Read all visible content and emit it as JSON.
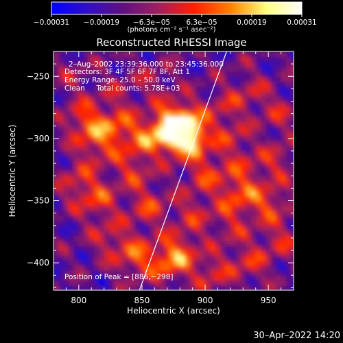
{
  "chart_data": {
    "type": "heatmap",
    "title": "Reconstructed RHESSI Image",
    "xlabel": "Heliocentric X (arcsec)",
    "ylabel": "Heliocentric Y (arcsec)",
    "xlim": [
      780,
      970
    ],
    "ylim": [
      -422,
      -230
    ],
    "x_ticks": [
      800,
      850,
      900,
      950
    ],
    "y_ticks": [
      -250,
      -300,
      -350,
      -400
    ],
    "x_tick_labels": [
      "800",
      "850",
      "900",
      "950"
    ],
    "y_tick_labels": [
      "−250",
      "−300",
      "−350",
      "−400"
    ],
    "colorbar": {
      "range": [
        -0.00031,
        0.00031
      ],
      "tick_labels": [
        "−0.00031",
        "−0.00019",
        "−6.3e−05",
        "6.3e−05",
        "0.00019",
        "0.00031"
      ],
      "colors": [
        "#0000ff",
        "#3010c0",
        "#601080",
        "#a02060",
        "#ff2000",
        "#ff8000",
        "#ffff80",
        "#ffffff"
      ]
    },
    "colorbar_label": "(photons cm⁻² s⁻¹ asec⁻²)",
    "annotations": [
      "2–Aug–2002 23:39:36.000 to 23:45:36.000",
      "Detectors: 3F 4F 5F 6F 7F 8F, Att 1",
      "Energy Range: 25.0 – 50.0 keV",
      "Clean     Total counts: 5.78E+03"
    ],
    "peak_label": "Position of Peak = [886,−298]",
    "peak": [
      886,
      -298
    ],
    "limb_line": [
      [
        848,
        -422
      ],
      [
        917,
        -230
      ]
    ],
    "hotspots": [
      {
        "x": 886,
        "y": -298,
        "intensity": 1.0
      },
      {
        "x": 872,
        "y": -294,
        "intensity": 0.85
      },
      {
        "x": 880,
        "y": -285,
        "intensity": 0.6
      },
      {
        "x": 805,
        "y": -285,
        "intensity": 0.55
      },
      {
        "x": 830,
        "y": -290,
        "intensity": 0.5
      },
      {
        "x": 815,
        "y": -305,
        "intensity": 0.45
      },
      {
        "x": 850,
        "y": -300,
        "intensity": 0.45
      },
      {
        "x": 843,
        "y": -325,
        "intensity": 0.4
      },
      {
        "x": 815,
        "y": -350,
        "intensity": 0.45
      },
      {
        "x": 800,
        "y": -335,
        "intensity": 0.4
      },
      {
        "x": 900,
        "y": -328,
        "intensity": 0.45
      },
      {
        "x": 925,
        "y": -345,
        "intensity": 0.5
      },
      {
        "x": 950,
        "y": -352,
        "intensity": 0.5
      },
      {
        "x": 855,
        "y": -355,
        "intensity": 0.45
      },
      {
        "x": 845,
        "y": -395,
        "intensity": 0.55
      },
      {
        "x": 870,
        "y": -400,
        "intensity": 0.5
      },
      {
        "x": 880,
        "y": -390,
        "intensity": 0.45
      },
      {
        "x": 825,
        "y": -380,
        "intensity": 0.35
      },
      {
        "x": 905,
        "y": -408,
        "intensity": 0.4
      },
      {
        "x": 935,
        "y": -400,
        "intensity": 0.4
      },
      {
        "x": 960,
        "y": -382,
        "intensity": 0.35
      },
      {
        "x": 957,
        "y": -318,
        "intensity": 0.35
      },
      {
        "x": 920,
        "y": -300,
        "intensity": 0.35
      },
      {
        "x": 935,
        "y": -262,
        "intensity": 0.3
      },
      {
        "x": 958,
        "y": -280,
        "intensity": 0.3
      },
      {
        "x": 913,
        "y": -275,
        "intensity": 0.3
      },
      {
        "x": 890,
        "y": -360,
        "intensity": 0.35
      },
      {
        "x": 920,
        "y": -370,
        "intensity": 0.3
      },
      {
        "x": 860,
        "y": -255,
        "intensity": 0.25
      },
      {
        "x": 795,
        "y": -250,
        "intensity": 0.2
      },
      {
        "x": 830,
        "y": -262,
        "intensity": 0.2
      },
      {
        "x": 930,
        "y": -325,
        "intensity": 0.3
      }
    ]
  },
  "footer": {
    "timestamp": "30–Apr–2022 14:20"
  }
}
